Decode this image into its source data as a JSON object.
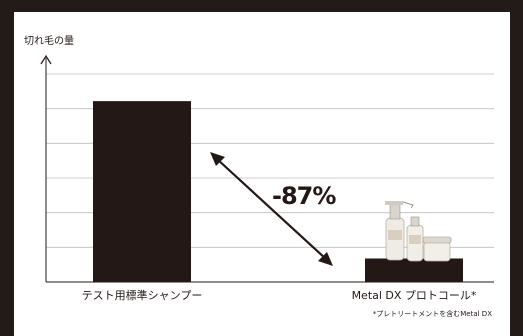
{
  "chart_data": {
    "type": "bar",
    "title": "",
    "ylabel": "切れ毛の量",
    "xlabel": "",
    "categories": [
      "テスト用標準シャンプー",
      "Metal DX プロトコール*"
    ],
    "values": [
      100,
      13
    ],
    "ylim": [
      0,
      115
    ],
    "grid": true,
    "annotation": "-87%",
    "footnote": "*プレトリートメントを含むMetal DX",
    "bar_color": "#231815"
  },
  "product_image": {
    "description_icon": "product-bottles-icon"
  }
}
